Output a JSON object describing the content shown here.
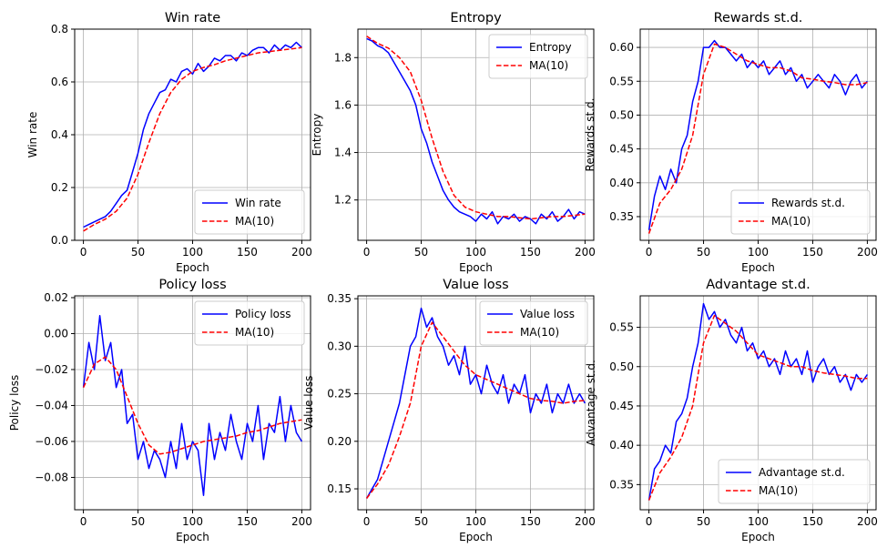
{
  "chart_data": [
    {
      "type": "line",
      "title": "Win rate",
      "xlabel": "Epoch",
      "ylabel": "Win rate",
      "xlim": [
        -8,
        208
      ],
      "ylim": [
        0.0,
        0.8
      ],
      "xticks": [
        0,
        50,
        100,
        150,
        200
      ],
      "yticks": [
        0.0,
        0.2,
        0.4,
        0.6,
        0.8
      ],
      "yticklabels": [
        "0.0",
        "0.2",
        "0.4",
        "0.6",
        "0.8"
      ],
      "grid": true,
      "legend_position": "lower right",
      "series": [
        {
          "name": "Win rate",
          "color": "#0000ff",
          "style": "solid",
          "x": [
            0,
            5,
            10,
            15,
            20,
            25,
            30,
            35,
            40,
            45,
            50,
            55,
            60,
            65,
            70,
            75,
            80,
            85,
            90,
            95,
            100,
            105,
            110,
            115,
            120,
            125,
            130,
            135,
            140,
            145,
            150,
            155,
            160,
            165,
            170,
            175,
            180,
            185,
            190,
            195,
            200
          ],
          "y": [
            0.05,
            0.06,
            0.07,
            0.08,
            0.09,
            0.11,
            0.14,
            0.17,
            0.19,
            0.26,
            0.33,
            0.42,
            0.48,
            0.52,
            0.56,
            0.57,
            0.61,
            0.6,
            0.64,
            0.65,
            0.63,
            0.67,
            0.64,
            0.66,
            0.69,
            0.68,
            0.7,
            0.7,
            0.68,
            0.71,
            0.7,
            0.72,
            0.73,
            0.73,
            0.71,
            0.74,
            0.72,
            0.74,
            0.73,
            0.75,
            0.73
          ]
        },
        {
          "name": "MA(10)",
          "color": "#ff0000",
          "style": "dashed",
          "x": [
            0,
            10,
            20,
            30,
            40,
            50,
            60,
            70,
            80,
            90,
            100,
            110,
            120,
            130,
            140,
            150,
            160,
            170,
            180,
            190,
            200
          ],
          "y": [
            0.035,
            0.06,
            0.08,
            0.11,
            0.16,
            0.25,
            0.37,
            0.48,
            0.56,
            0.61,
            0.64,
            0.655,
            0.665,
            0.68,
            0.69,
            0.7,
            0.71,
            0.715,
            0.72,
            0.725,
            0.73
          ]
        }
      ]
    },
    {
      "type": "line",
      "title": "Entropy",
      "xlabel": "Epoch",
      "ylabel": "Entropy",
      "xlim": [
        -8,
        208
      ],
      "ylim": [
        1.03,
        1.92
      ],
      "xticks": [
        0,
        50,
        100,
        150,
        200
      ],
      "yticks": [
        1.2,
        1.4,
        1.6,
        1.8
      ],
      "yticklabels": [
        "1.2",
        "1.4",
        "1.6",
        "1.8"
      ],
      "grid": true,
      "legend_position": "upper right",
      "series": [
        {
          "name": "Entropy",
          "color": "#0000ff",
          "style": "solid",
          "x": [
            0,
            5,
            10,
            15,
            20,
            25,
            30,
            35,
            40,
            45,
            50,
            55,
            60,
            65,
            70,
            75,
            80,
            85,
            90,
            95,
            100,
            105,
            110,
            115,
            120,
            125,
            130,
            135,
            140,
            145,
            150,
            155,
            160,
            165,
            170,
            175,
            180,
            185,
            190,
            195,
            200
          ],
          "y": [
            1.88,
            1.87,
            1.85,
            1.84,
            1.82,
            1.78,
            1.74,
            1.7,
            1.66,
            1.6,
            1.5,
            1.44,
            1.36,
            1.3,
            1.24,
            1.2,
            1.17,
            1.15,
            1.14,
            1.13,
            1.11,
            1.14,
            1.12,
            1.15,
            1.1,
            1.13,
            1.12,
            1.14,
            1.11,
            1.13,
            1.12,
            1.1,
            1.14,
            1.12,
            1.15,
            1.11,
            1.13,
            1.16,
            1.12,
            1.15,
            1.14
          ]
        },
        {
          "name": "MA(10)",
          "color": "#ff0000",
          "style": "dashed",
          "x": [
            0,
            10,
            20,
            30,
            40,
            50,
            60,
            70,
            80,
            90,
            100,
            110,
            120,
            130,
            140,
            150,
            160,
            170,
            180,
            190,
            200
          ],
          "y": [
            1.89,
            1.86,
            1.84,
            1.8,
            1.74,
            1.62,
            1.46,
            1.32,
            1.22,
            1.17,
            1.15,
            1.14,
            1.13,
            1.13,
            1.125,
            1.12,
            1.125,
            1.13,
            1.13,
            1.135,
            1.14
          ]
        }
      ]
    },
    {
      "type": "line",
      "title": "Rewards st.d.",
      "xlabel": "Epoch",
      "ylabel": "Rewards st.d.",
      "xlim": [
        -8,
        208
      ],
      "ylim": [
        0.315,
        0.627
      ],
      "xticks": [
        0,
        50,
        100,
        150,
        200
      ],
      "yticks": [
        0.35,
        0.4,
        0.45,
        0.5,
        0.55,
        0.6
      ],
      "yticklabels": [
        "0.35",
        "0.40",
        "0.45",
        "0.50",
        "0.55",
        "0.60"
      ],
      "grid": true,
      "legend_position": "lower right",
      "series": [
        {
          "name": "Rewards st.d.",
          "color": "#0000ff",
          "style": "solid",
          "x": [
            0,
            5,
            10,
            15,
            20,
            25,
            30,
            35,
            40,
            45,
            50,
            55,
            60,
            65,
            70,
            75,
            80,
            85,
            90,
            95,
            100,
            105,
            110,
            115,
            120,
            125,
            130,
            135,
            140,
            145,
            150,
            155,
            160,
            165,
            170,
            175,
            180,
            185,
            190,
            195,
            200
          ],
          "y": [
            0.33,
            0.38,
            0.41,
            0.39,
            0.42,
            0.4,
            0.45,
            0.47,
            0.52,
            0.55,
            0.6,
            0.6,
            0.61,
            0.6,
            0.6,
            0.59,
            0.58,
            0.59,
            0.57,
            0.58,
            0.57,
            0.58,
            0.56,
            0.57,
            0.58,
            0.56,
            0.57,
            0.55,
            0.56,
            0.54,
            0.55,
            0.56,
            0.55,
            0.54,
            0.56,
            0.55,
            0.53,
            0.55,
            0.56,
            0.54,
            0.55
          ]
        },
        {
          "name": "MA(10)",
          "color": "#ff0000",
          "style": "dashed",
          "x": [
            0,
            10,
            20,
            30,
            40,
            50,
            60,
            70,
            80,
            90,
            100,
            110,
            120,
            130,
            140,
            150,
            160,
            170,
            180,
            190,
            200
          ],
          "y": [
            0.325,
            0.37,
            0.39,
            0.42,
            0.47,
            0.56,
            0.605,
            0.6,
            0.59,
            0.58,
            0.575,
            0.57,
            0.57,
            0.565,
            0.555,
            0.553,
            0.55,
            0.548,
            0.545,
            0.545,
            0.548
          ]
        }
      ]
    },
    {
      "type": "line",
      "title": "Policy loss",
      "xlabel": "Epoch",
      "ylabel": "Policy loss",
      "xlim": [
        -8,
        208
      ],
      "ylim": [
        -0.098,
        0.021
      ],
      "xticks": [
        0,
        50,
        100,
        150,
        200
      ],
      "yticks": [
        -0.08,
        -0.06,
        -0.04,
        -0.02,
        0.0,
        0.02
      ],
      "yticklabels": [
        "−0.08",
        "−0.06",
        "−0.04",
        "−0.02",
        "0.00",
        "0.02"
      ],
      "grid": true,
      "legend_position": "upper right",
      "series": [
        {
          "name": "Policy loss",
          "color": "#0000ff",
          "style": "solid",
          "x": [
            0,
            5,
            10,
            15,
            20,
            25,
            30,
            35,
            40,
            45,
            50,
            55,
            60,
            65,
            70,
            75,
            80,
            85,
            90,
            95,
            100,
            105,
            110,
            115,
            120,
            125,
            130,
            135,
            140,
            145,
            150,
            155,
            160,
            165,
            170,
            175,
            180,
            185,
            190,
            195,
            200
          ],
          "y": [
            -0.03,
            -0.005,
            -0.02,
            0.01,
            -0.015,
            -0.005,
            -0.03,
            -0.02,
            -0.05,
            -0.045,
            -0.07,
            -0.06,
            -0.075,
            -0.065,
            -0.07,
            -0.08,
            -0.06,
            -0.075,
            -0.05,
            -0.07,
            -0.06,
            -0.065,
            -0.09,
            -0.05,
            -0.07,
            -0.055,
            -0.065,
            -0.045,
            -0.06,
            -0.07,
            -0.05,
            -0.06,
            -0.04,
            -0.07,
            -0.05,
            -0.055,
            -0.035,
            -0.06,
            -0.04,
            -0.055,
            -0.06
          ]
        },
        {
          "name": "MA(10)",
          "color": "#ff0000",
          "style": "dashed",
          "x": [
            0,
            10,
            20,
            30,
            40,
            50,
            60,
            70,
            80,
            90,
            100,
            110,
            120,
            130,
            140,
            150,
            160,
            170,
            180,
            190,
            200
          ],
          "y": [
            -0.03,
            -0.017,
            -0.013,
            -0.02,
            -0.035,
            -0.05,
            -0.062,
            -0.067,
            -0.066,
            -0.064,
            -0.062,
            -0.06,
            -0.059,
            -0.058,
            -0.057,
            -0.055,
            -0.054,
            -0.052,
            -0.05,
            -0.049,
            -0.048
          ]
        }
      ]
    },
    {
      "type": "line",
      "title": "Value loss",
      "xlabel": "Epoch",
      "ylabel": "Value loss",
      "xlim": [
        -8,
        208
      ],
      "ylim": [
        0.128,
        0.353
      ],
      "xticks": [
        0,
        50,
        100,
        150,
        200
      ],
      "yticks": [
        0.15,
        0.2,
        0.25,
        0.3,
        0.35
      ],
      "yticklabels": [
        "0.15",
        "0.20",
        "0.25",
        "0.30",
        "0.35"
      ],
      "grid": true,
      "legend_position": "upper right",
      "series": [
        {
          "name": "Value loss",
          "color": "#0000ff",
          "style": "solid",
          "x": [
            0,
            5,
            10,
            15,
            20,
            25,
            30,
            35,
            40,
            45,
            50,
            55,
            60,
            65,
            70,
            75,
            80,
            85,
            90,
            95,
            100,
            105,
            110,
            115,
            120,
            125,
            130,
            135,
            140,
            145,
            150,
            155,
            160,
            165,
            170,
            175,
            180,
            185,
            190,
            195,
            200
          ],
          "y": [
            0.14,
            0.15,
            0.16,
            0.18,
            0.2,
            0.22,
            0.24,
            0.27,
            0.3,
            0.31,
            0.34,
            0.32,
            0.33,
            0.31,
            0.3,
            0.28,
            0.29,
            0.27,
            0.3,
            0.26,
            0.27,
            0.25,
            0.28,
            0.26,
            0.25,
            0.27,
            0.24,
            0.26,
            0.25,
            0.27,
            0.23,
            0.25,
            0.24,
            0.26,
            0.23,
            0.25,
            0.24,
            0.26,
            0.24,
            0.25,
            0.24
          ]
        },
        {
          "name": "MA(10)",
          "color": "#ff0000",
          "style": "dashed",
          "x": [
            0,
            10,
            20,
            30,
            40,
            50,
            60,
            70,
            80,
            90,
            100,
            110,
            120,
            130,
            140,
            150,
            160,
            170,
            180,
            190,
            200
          ],
          "y": [
            0.14,
            0.155,
            0.175,
            0.205,
            0.24,
            0.3,
            0.325,
            0.31,
            0.295,
            0.28,
            0.27,
            0.265,
            0.26,
            0.255,
            0.25,
            0.245,
            0.243,
            0.242,
            0.24,
            0.242,
            0.243
          ]
        }
      ]
    },
    {
      "type": "line",
      "title": "Advantage st.d.",
      "xlabel": "Epoch",
      "ylabel": "Advantage st.d.",
      "xlim": [
        -8,
        208
      ],
      "ylim": [
        0.318,
        0.59
      ],
      "xticks": [
        0,
        50,
        100,
        150,
        200
      ],
      "yticks": [
        0.35,
        0.4,
        0.45,
        0.5,
        0.55
      ],
      "yticklabels": [
        "0.35",
        "0.40",
        "0.45",
        "0.50",
        "0.55"
      ],
      "grid": true,
      "legend_position": "lower right",
      "series": [
        {
          "name": "Advantage st.d.",
          "color": "#0000ff",
          "style": "solid",
          "x": [
            0,
            5,
            10,
            15,
            20,
            25,
            30,
            35,
            40,
            45,
            50,
            55,
            60,
            65,
            70,
            75,
            80,
            85,
            90,
            95,
            100,
            105,
            110,
            115,
            120,
            125,
            130,
            135,
            140,
            145,
            150,
            155,
            160,
            165,
            170,
            175,
            180,
            185,
            190,
            195,
            200
          ],
          "y": [
            0.33,
            0.37,
            0.38,
            0.4,
            0.39,
            0.43,
            0.44,
            0.46,
            0.5,
            0.53,
            0.58,
            0.56,
            0.57,
            0.55,
            0.56,
            0.54,
            0.53,
            0.55,
            0.52,
            0.53,
            0.51,
            0.52,
            0.5,
            0.51,
            0.49,
            0.52,
            0.5,
            0.51,
            0.49,
            0.52,
            0.48,
            0.5,
            0.51,
            0.49,
            0.5,
            0.48,
            0.49,
            0.47,
            0.49,
            0.48,
            0.49
          ]
        },
        {
          "name": "MA(10)",
          "color": "#ff0000",
          "style": "dashed",
          "x": [
            0,
            10,
            20,
            30,
            40,
            50,
            60,
            70,
            80,
            90,
            100,
            110,
            120,
            130,
            140,
            150,
            160,
            170,
            180,
            190,
            200
          ],
          "y": [
            0.33,
            0.365,
            0.385,
            0.41,
            0.45,
            0.53,
            0.565,
            0.555,
            0.545,
            0.53,
            0.515,
            0.51,
            0.505,
            0.5,
            0.5,
            0.495,
            0.492,
            0.49,
            0.488,
            0.485,
            0.485
          ]
        }
      ]
    }
  ]
}
